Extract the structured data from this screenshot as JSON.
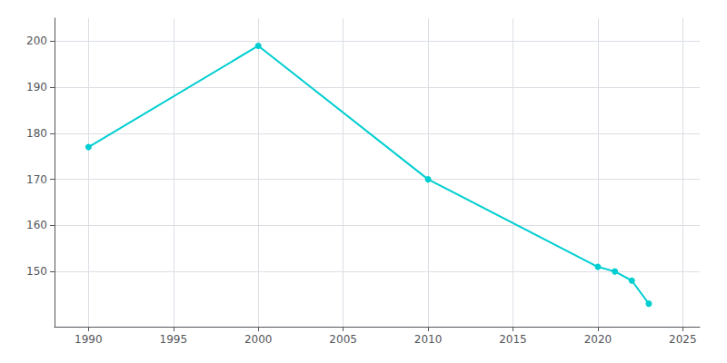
{
  "chart_data": {
    "type": "line",
    "x": [
      1990,
      2000,
      2010,
      2020,
      2021,
      2022,
      2023
    ],
    "values": [
      177,
      199,
      170,
      151,
      150,
      148,
      143
    ],
    "color": "#00CED1",
    "marker": "circle",
    "xlim": [
      1988,
      2026
    ],
    "ylim": [
      138,
      205
    ],
    "xticks": [
      1990,
      1995,
      2000,
      2005,
      2010,
      2015,
      2020,
      2025
    ],
    "yticks": [
      150,
      160,
      170,
      180,
      190,
      200
    ],
    "grid": true
  }
}
